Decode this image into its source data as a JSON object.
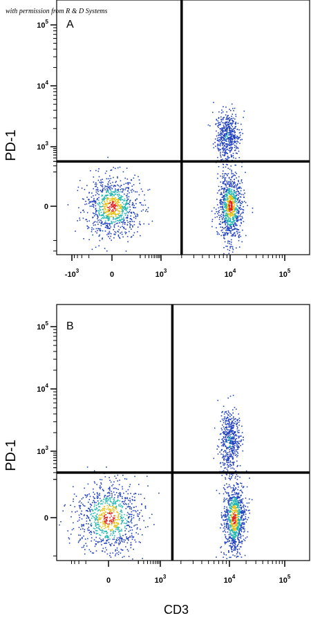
{
  "credit": "with permission from R & D Systems",
  "colors": {
    "gate": "#000000",
    "low": "#1f3fbf",
    "mid": "#22b7b0",
    "high": "#e8c21a",
    "peak": "#e02020"
  },
  "chart_data": {
    "type": "scatter",
    "subtype": "flow-cytometry density dot plot",
    "xlabel": "CD3",
    "ylabel": "PD-1",
    "x_scale": "biexponential",
    "y_scale": "biexponential",
    "xlim": [
      -3000,
      200000
    ],
    "ylim": [
      -1000,
      200000
    ],
    "panels": [
      {
        "label": "A",
        "x_ticks": [
          {
            "value": -1000,
            "base": "-10",
            "exp": "3"
          },
          {
            "value": 0,
            "base": "0",
            "exp": ""
          },
          {
            "value": 1000,
            "base": "10",
            "exp": "3"
          },
          {
            "value": 10000,
            "base": "10",
            "exp": "4"
          },
          {
            "value": 100000,
            "base": "10",
            "exp": "5"
          }
        ],
        "y_ticks": [
          {
            "value": 0,
            "base": "0",
            "exp": ""
          },
          {
            "value": 1000,
            "base": "10",
            "exp": "3"
          },
          {
            "value": 10000,
            "base": "10",
            "exp": "4"
          },
          {
            "value": 100000,
            "base": "10",
            "exp": "5"
          }
        ],
        "gate_x": 2000,
        "gate_y": 400,
        "populations": [
          {
            "name": "",
            "x_center": 0,
            "y_center": 0,
            "x_spread": 150,
            "y_spread": 120,
            "density": "high"
          },
          {
            "name": "",
            "x_center": 10000,
            "y_center": 0,
            "x_spread": 6000,
            "y_spread": 150,
            "density": "high"
          },
          {
            "name": "",
            "x_center": 9000,
            "y_center": 1500,
            "x_spread": 5000,
            "y_spread": 2000,
            "density": "low"
          }
        ]
      },
      {
        "label": "B",
        "x_ticks": [
          {
            "value": 0,
            "base": "0",
            "exp": ""
          },
          {
            "value": 1000,
            "base": "10",
            "exp": "3"
          },
          {
            "value": 10000,
            "base": "10",
            "exp": "4"
          },
          {
            "value": 100000,
            "base": "10",
            "exp": "5"
          }
        ],
        "y_ticks": [
          {
            "value": 0,
            "base": "0",
            "exp": ""
          },
          {
            "value": 1000,
            "base": "10",
            "exp": "3"
          },
          {
            "value": 10000,
            "base": "10",
            "exp": "4"
          },
          {
            "value": 100000,
            "base": "10",
            "exp": "5"
          }
        ],
        "gate_x": 1500,
        "gate_y": 300,
        "populations": [
          {
            "name": "",
            "x_center": 0,
            "y_center": 0,
            "x_spread": 200,
            "y_spread": 150,
            "density": "high"
          },
          {
            "name": "",
            "x_center": 12000,
            "y_center": 0,
            "x_spread": 6000,
            "y_spread": 150,
            "density": "high"
          },
          {
            "name": "",
            "x_center": 10000,
            "y_center": 1500,
            "x_spread": 5000,
            "y_spread": 2500,
            "density": "low"
          }
        ]
      }
    ]
  }
}
